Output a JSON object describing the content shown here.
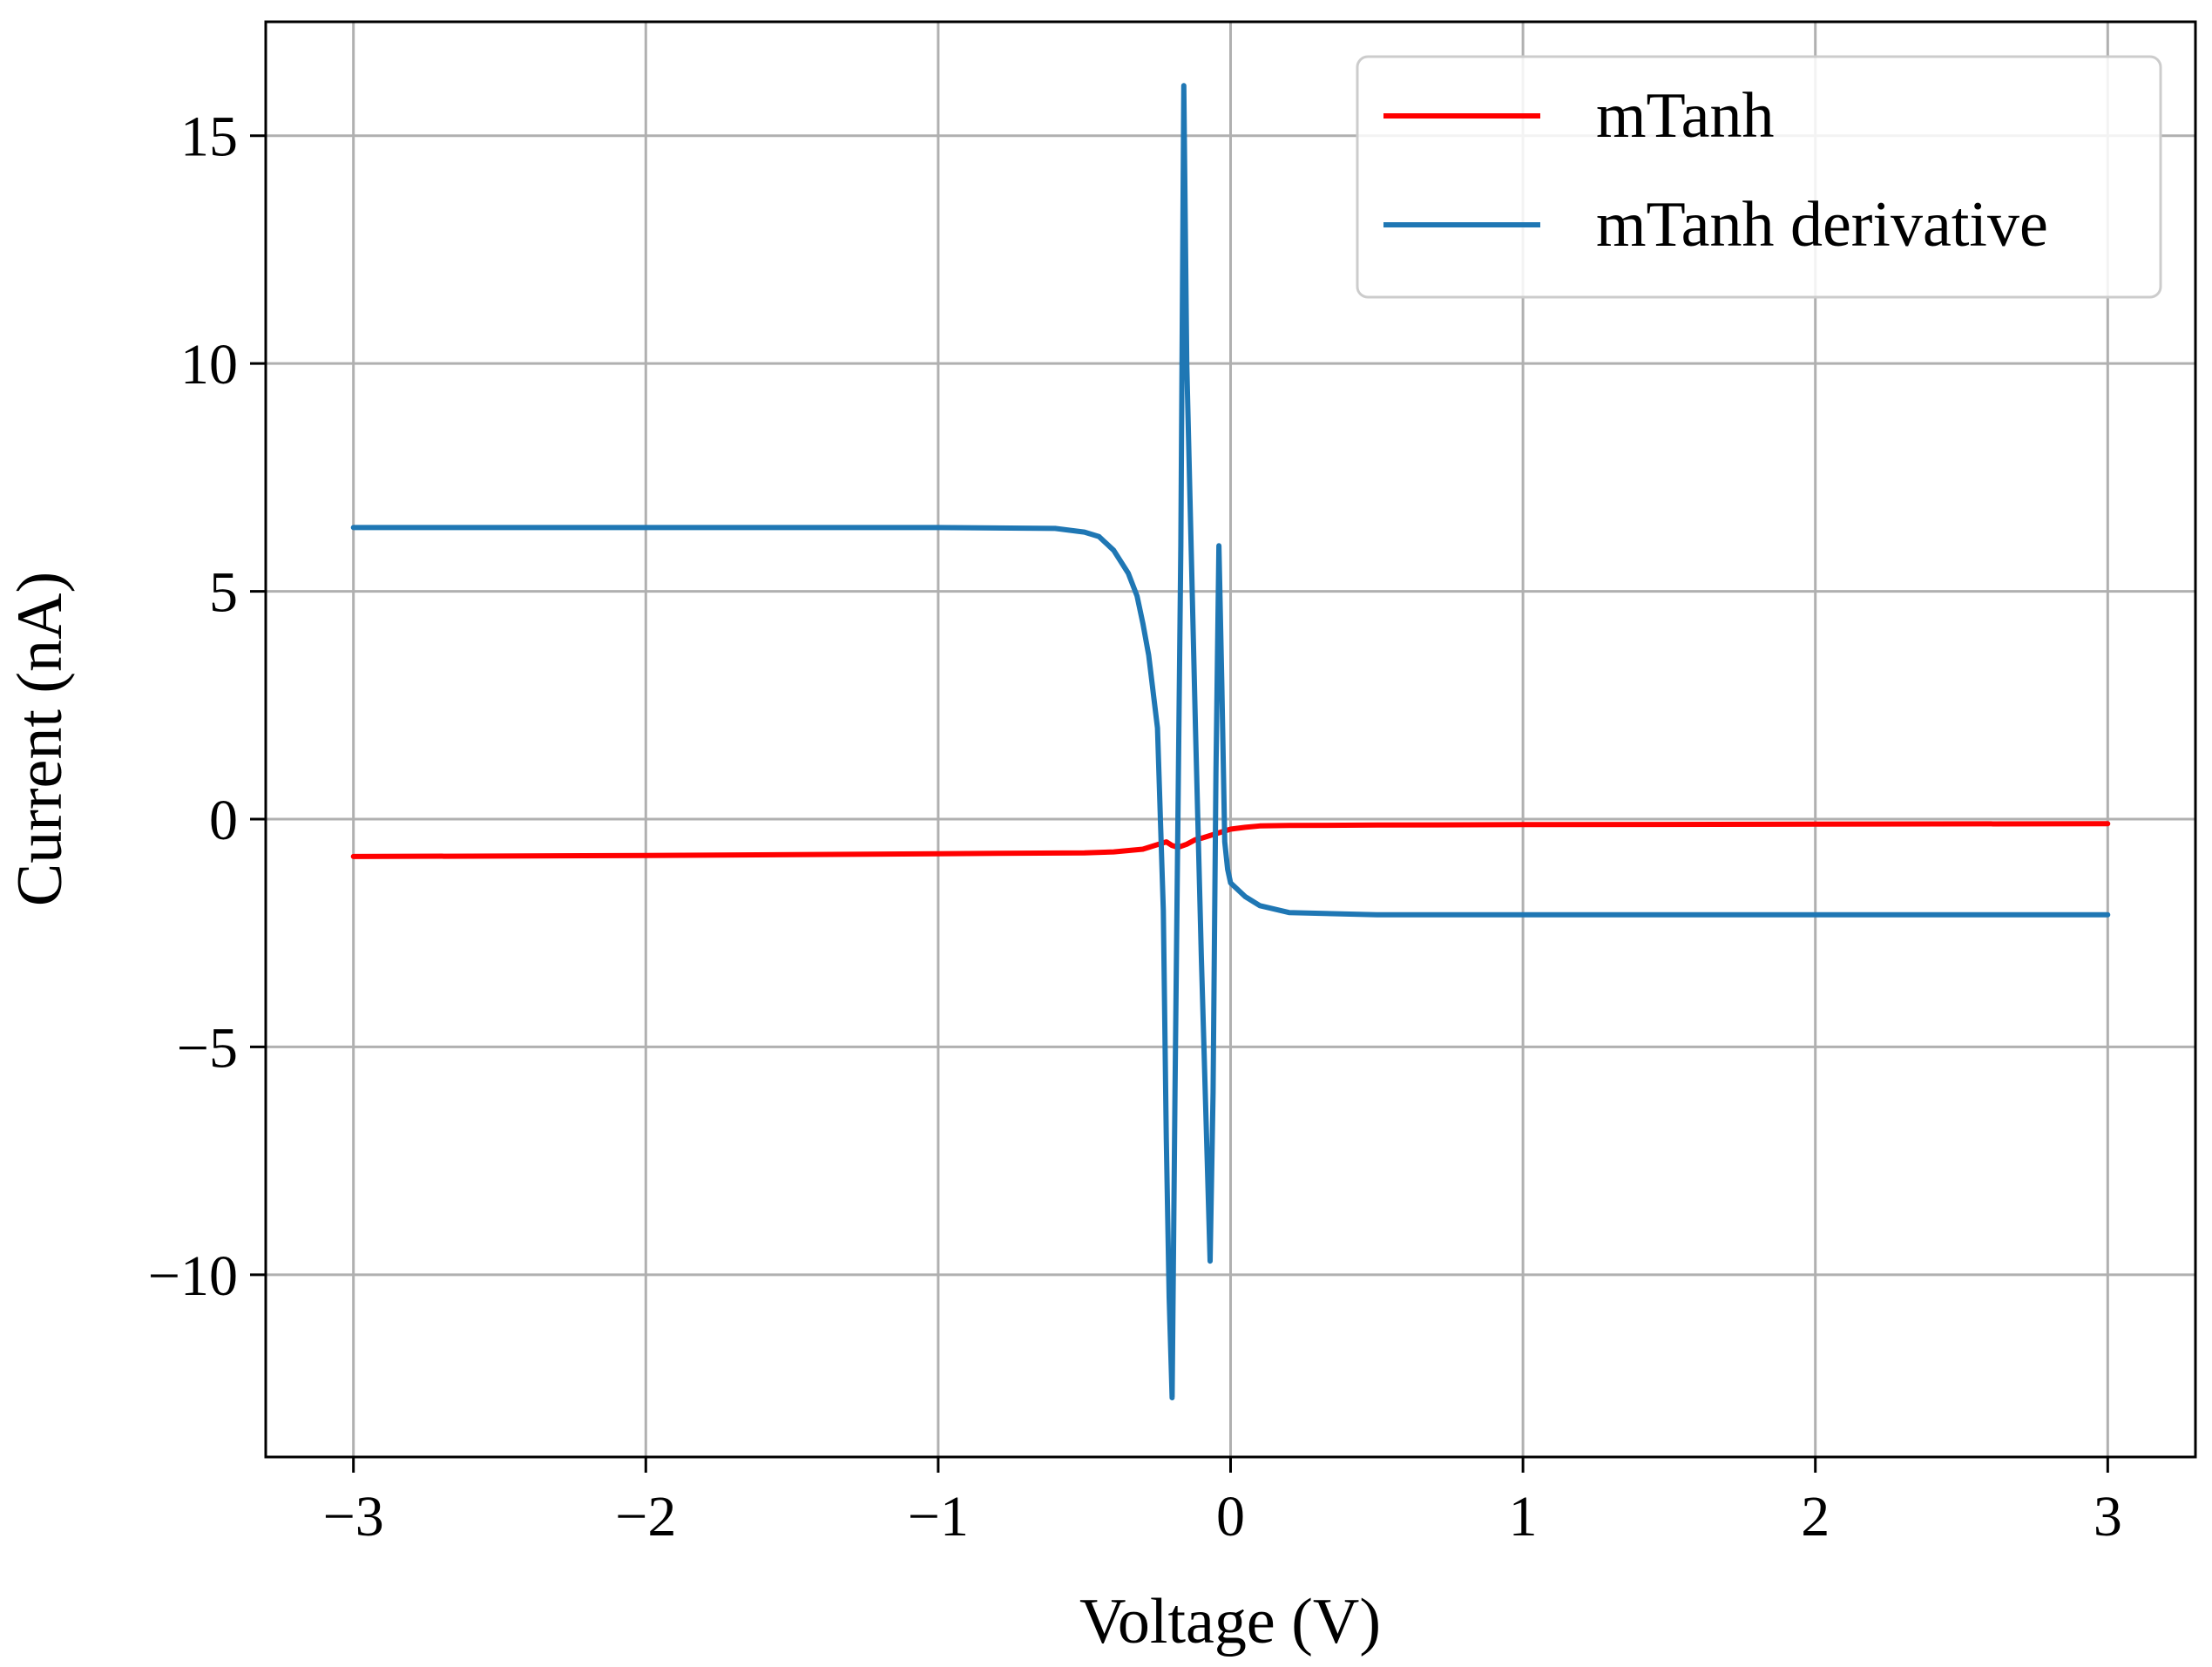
{
  "chart_data": {
    "type": "line",
    "title": "",
    "xlabel": "Voltage (V)",
    "ylabel": "Current (nA)",
    "xlim": [
      -3.3,
      3.3
    ],
    "ylim": [
      -14.0,
      17.5
    ],
    "x_ticks": [
      -3,
      -2,
      -1,
      0,
      1,
      2,
      3
    ],
    "x_tick_labels": [
      "−3",
      "−2",
      "−1",
      "0",
      "1",
      "2",
      "3"
    ],
    "y_ticks": [
      -10,
      -5,
      0,
      5,
      10,
      15
    ],
    "y_tick_labels": [
      "−10",
      "−5",
      "0",
      "5",
      "10",
      "15"
    ],
    "grid": true,
    "legend_position": "top-right",
    "series": [
      {
        "name": "mTanh",
        "color": "#ff0000",
        "x": [
          -3.0,
          -2.0,
          -1.0,
          -0.5,
          -0.4,
          -0.3,
          -0.25,
          -0.22,
          -0.2,
          -0.18,
          -0.15,
          -0.12,
          -0.1,
          -0.08,
          -0.05,
          -0.02,
          0.0,
          0.05,
          0.1,
          0.2,
          0.5,
          1.0,
          2.0,
          3.0
        ],
        "y": [
          -0.82,
          -0.8,
          -0.76,
          -0.74,
          -0.72,
          -0.66,
          -0.56,
          -0.5,
          -0.58,
          -0.62,
          -0.55,
          -0.45,
          -0.42,
          -0.38,
          -0.32,
          -0.26,
          -0.22,
          -0.18,
          -0.15,
          -0.14,
          -0.13,
          -0.12,
          -0.11,
          -0.1
        ]
      },
      {
        "name": "mTanh derivative",
        "color": "#1f77b4",
        "x": [
          -3.0,
          -2.0,
          -1.0,
          -0.6,
          -0.5,
          -0.45,
          -0.4,
          -0.35,
          -0.32,
          -0.3,
          -0.28,
          -0.25,
          -0.23,
          -0.22,
          -0.21,
          -0.2,
          -0.19,
          -0.17,
          -0.16,
          -0.15,
          -0.12,
          -0.1,
          -0.08,
          -0.07,
          -0.06,
          -0.05,
          -0.04,
          -0.03,
          -0.02,
          -0.01,
          0.0,
          0.05,
          0.1,
          0.2,
          0.5,
          1.0,
          2.0,
          3.0
        ],
        "y": [
          6.4,
          6.4,
          6.4,
          6.38,
          6.3,
          6.2,
          5.9,
          5.4,
          4.9,
          4.3,
          3.6,
          2.0,
          -2.0,
          -7.0,
          -10.5,
          -12.7,
          -6.0,
          6.0,
          16.1,
          10.0,
          2.0,
          -3.0,
          -7.5,
          -9.7,
          -6.0,
          1.0,
          6.0,
          3.0,
          -0.5,
          -1.1,
          -1.4,
          -1.7,
          -1.9,
          -2.05,
          -2.1,
          -2.1,
          -2.1,
          -2.1
        ]
      }
    ]
  }
}
